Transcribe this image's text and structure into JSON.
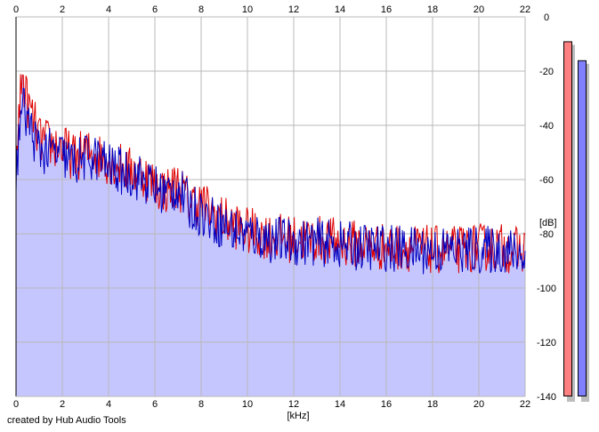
{
  "credit_text": "created by Hub Audio Tools",
  "chart_data": {
    "type": "area",
    "xlabel": "[kHz]",
    "ylabel": "[dB]",
    "xlim": [
      0,
      22
    ],
    "ylim": [
      -140,
      0
    ],
    "x_ticks": [
      0,
      2,
      4,
      6,
      8,
      10,
      12,
      14,
      16,
      18,
      20,
      22
    ],
    "y_ticks": [
      0,
      -20,
      -40,
      -60,
      -80,
      -100,
      -120,
      -140
    ],
    "grid": true,
    "series": [
      {
        "color": "#e00000",
        "x": [
          0,
          0.25,
          0.5,
          0.75,
          1,
          1.5,
          2,
          2.5,
          3,
          3.5,
          4,
          4.5,
          5,
          5.5,
          6,
          6.5,
          7,
          7.5,
          8,
          8.5,
          9,
          9.5,
          10,
          11,
          12,
          13,
          14,
          15,
          16,
          17,
          18,
          19,
          20,
          21,
          22
        ],
        "values": [
          -53,
          -22,
          -32,
          -38,
          -45,
          -47,
          -48,
          -52,
          -50,
          -51,
          -53,
          -55,
          -57,
          -58,
          -62,
          -64,
          -62,
          -68,
          -69,
          -72,
          -75,
          -77,
          -79,
          -81,
          -82,
          -82,
          -83,
          -84,
          -85,
          -85,
          -86,
          -86,
          -85,
          -85,
          -87
        ]
      },
      {
        "color": "#0000c0",
        "x": [
          0,
          0.25,
          0.5,
          0.75,
          1,
          1.5,
          2,
          2.5,
          3,
          3.5,
          4,
          4.5,
          5,
          5.5,
          6,
          6.5,
          7,
          7.5,
          8,
          8.5,
          9,
          9.5,
          10,
          11,
          12,
          13,
          14,
          15,
          16,
          17,
          18,
          19,
          20,
          21,
          22
        ],
        "values": [
          -58,
          -32,
          -38,
          -44,
          -49,
          -50,
          -51,
          -54,
          -52,
          -52,
          -55,
          -57,
          -58,
          -60,
          -63,
          -65,
          -63,
          -70,
          -72,
          -75,
          -77,
          -79,
          -80,
          -82,
          -83,
          -83,
          -84,
          -85,
          -85,
          -86,
          -86,
          -86,
          -86,
          -86,
          -88
        ]
      }
    ],
    "level_meters": [
      {
        "color": "#ff8080",
        "value": -9
      },
      {
        "color": "#8080ff",
        "value": -16
      }
    ]
  },
  "colors": {
    "fill": "#c6c6ff",
    "grid": "#b8b8b8",
    "axis": "#000000",
    "meter_shadow": "#bdbdbd"
  }
}
